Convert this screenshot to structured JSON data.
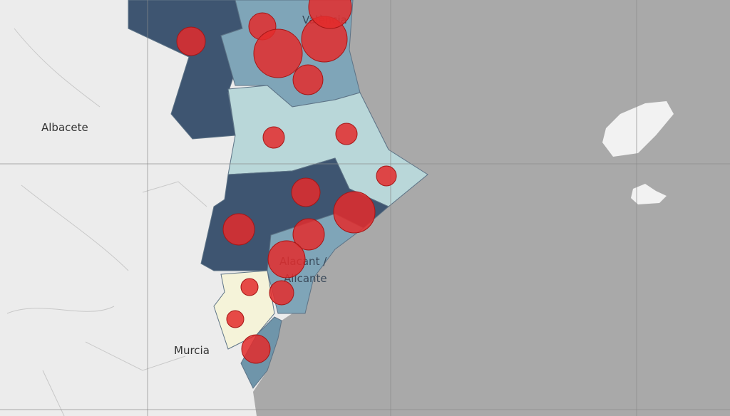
{
  "map": {
    "places": [
      {
        "name": "Albacete"
      },
      {
        "name": "València"
      },
      {
        "name_lines": [
          "Alacant /",
          "Alicante"
        ]
      },
      {
        "name": "Murcia"
      }
    ]
  }
}
